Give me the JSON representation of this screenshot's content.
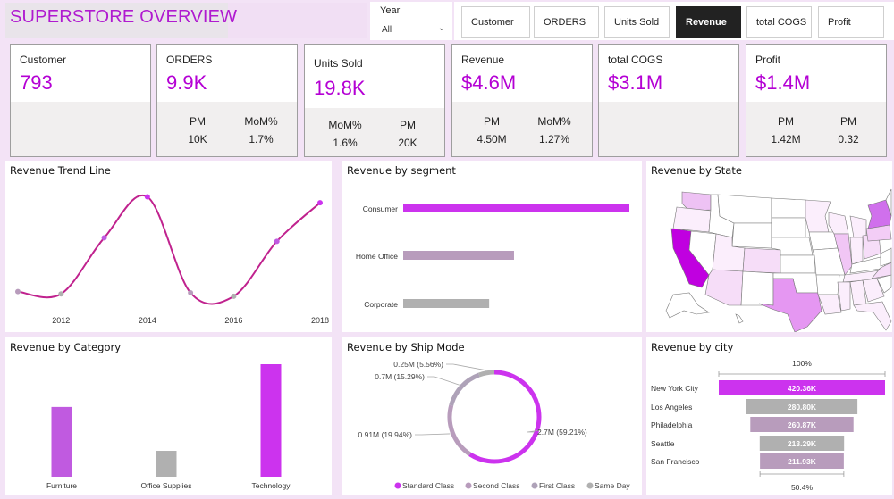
{
  "header": {
    "title": "SUPERSTORE OVERVIEW",
    "year_filter": {
      "label": "Year",
      "value": "All"
    }
  },
  "nav_buttons": [
    {
      "label": "Customer",
      "active": false
    },
    {
      "label": "ORDERS",
      "active": false
    },
    {
      "label": "Units Sold",
      "active": false
    },
    {
      "label": "Revenue",
      "active": true
    },
    {
      "label": "total COGS",
      "active": false
    },
    {
      "label": "Profit",
      "active": false
    }
  ],
  "kpis": [
    {
      "label": "Customer",
      "value": "793",
      "sub": []
    },
    {
      "label": "ORDERS",
      "value": "9.9K",
      "sub": [
        {
          "label": "PM",
          "value": "10K"
        },
        {
          "label": "MoM%",
          "value": "1.7%"
        }
      ]
    },
    {
      "label": "Units Sold",
      "value": "19.8K",
      "sub": [
        {
          "label": "MoM%",
          "value": "1.6%"
        },
        {
          "label": "PM",
          "value": "20K"
        }
      ]
    },
    {
      "label": "Revenue",
      "value": "$4.6M",
      "sub": [
        {
          "label": "PM",
          "value": "4.50M"
        },
        {
          "label": "MoM%",
          "value": "1.27%"
        }
      ]
    },
    {
      "label": "total COGS",
      "value": "$3.1M",
      "sub": []
    },
    {
      "label": "Profit",
      "value": "$1.4M",
      "sub": [
        {
          "label": "PM",
          "value": "1.42M"
        },
        {
          "label": "PM",
          "value": "0.32"
        }
      ]
    }
  ],
  "colors": {
    "accent": "#b400d4",
    "magenta": "#cc33ee",
    "violet": "#c05ae0",
    "mauve": "#b89cbc",
    "gray": "#b0b0b0",
    "line": "#c0228e"
  },
  "chart_data": [
    {
      "id": "trend",
      "type": "line",
      "title": "Revenue Trend Line",
      "x": [
        2011,
        2012,
        2013,
        2014,
        2015,
        2016,
        2017,
        2018
      ],
      "xticks": [
        "2012",
        "2014",
        "2016",
        "2018"
      ],
      "values": [
        0.14,
        0.12,
        0.6,
        0.95,
        0.13,
        0.1,
        0.57,
        0.9
      ],
      "point_colors": [
        "mauve",
        "gray",
        "violet",
        "magenta",
        "mauve",
        "gray",
        "violet",
        "magenta"
      ],
      "ylim": [
        0,
        1
      ],
      "yaxis_visible": false
    },
    {
      "id": "segment",
      "type": "bar",
      "orientation": "horizontal",
      "title": "Revenue by segment",
      "categories": [
        "Consumer",
        "Home Office",
        "Corporate"
      ],
      "values": [
        1.0,
        0.49,
        0.38
      ],
      "bar_colors": [
        "magenta",
        "mauve",
        "gray"
      ]
    },
    {
      "id": "state",
      "type": "map",
      "title": "Revenue by State",
      "highlights": [
        {
          "state": "California",
          "level": "high"
        },
        {
          "state": "New York",
          "level": "high"
        },
        {
          "state": "Texas",
          "level": "medium"
        },
        {
          "state": "Washington",
          "level": "low"
        },
        {
          "state": "Pennsylvania",
          "level": "low"
        },
        {
          "state": "Illinois",
          "level": "low"
        }
      ]
    },
    {
      "id": "category",
      "type": "bar",
      "title": "Revenue by Category",
      "categories": [
        "Furniture",
        "Office Supplies",
        "Technology"
      ],
      "values": [
        0.62,
        0.23,
        1.0
      ],
      "bar_colors": [
        "violet",
        "gray",
        "magenta"
      ]
    },
    {
      "id": "shipmode",
      "type": "pie",
      "donut": true,
      "title": "Revenue by Ship Mode",
      "slices": [
        {
          "name": "Standard Class",
          "value": 2.7,
          "pct": 59.21,
          "label": "2.7M (59.21%)",
          "color": "magenta"
        },
        {
          "name": "Second Class",
          "value": 0.91,
          "pct": 19.94,
          "label": "0.91M (19.94%)",
          "color": "mauve"
        },
        {
          "name": "First Class",
          "value": 0.7,
          "pct": 15.29,
          "label": "0.7M (15.29%)",
          "color": "mauve2"
        },
        {
          "name": "Same Day",
          "value": 0.25,
          "pct": 5.56,
          "label": "0.25M (5.56%)",
          "color": "gray"
        }
      ],
      "legend": [
        "Standard Class",
        "Second Class",
        "First Class",
        "Same Day"
      ],
      "legend_position": "bottom-right"
    },
    {
      "id": "city",
      "type": "funnel",
      "title": "Revenue by city",
      "top_label": "100%",
      "bottom_label": "50.4%",
      "categories": [
        "New York City",
        "Los Angeles",
        "Philadelphia",
        "Seattle",
        "San Francisco"
      ],
      "values": [
        420.36,
        280.8,
        260.87,
        213.29,
        211.93
      ],
      "labels": [
        "420.36K",
        "280.80K",
        "260.87K",
        "213.29K",
        "211.93K"
      ],
      "bar_colors": [
        "magenta",
        "gray",
        "mauve",
        "gray",
        "mauve"
      ]
    }
  ]
}
